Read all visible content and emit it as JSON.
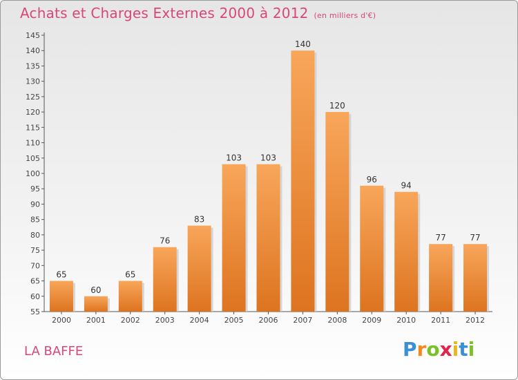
{
  "title": "Achats et Charges Externes 2000 à 2012",
  "subtitle": "(en milliers d'€)",
  "commune": "LA BAFFE",
  "logo": {
    "letters": [
      "P",
      "r",
      "o",
      "x",
      "i",
      "t",
      "i"
    ],
    "colors": [
      "#3b8fd6",
      "#f08a1d",
      "#7bbf2a",
      "#e0244c",
      "#f0b41d",
      "#3b8fd6",
      "#7bbf2a"
    ]
  },
  "colors": {
    "bar_light": "#f8a65a",
    "bar_dark": "#dd7420",
    "title": "#d8467a",
    "axis": "#444444"
  },
  "chart_data": {
    "type": "bar",
    "categories": [
      "2000",
      "2001",
      "2002",
      "2003",
      "2004",
      "2005",
      "2006",
      "2007",
      "2008",
      "2009",
      "2010",
      "2011",
      "2012"
    ],
    "values": [
      65,
      60,
      65,
      76,
      83,
      103,
      103,
      140,
      120,
      96,
      94,
      77,
      77
    ],
    "ylim": [
      55,
      145
    ],
    "ytick_step": 5,
    "grid": false
  }
}
